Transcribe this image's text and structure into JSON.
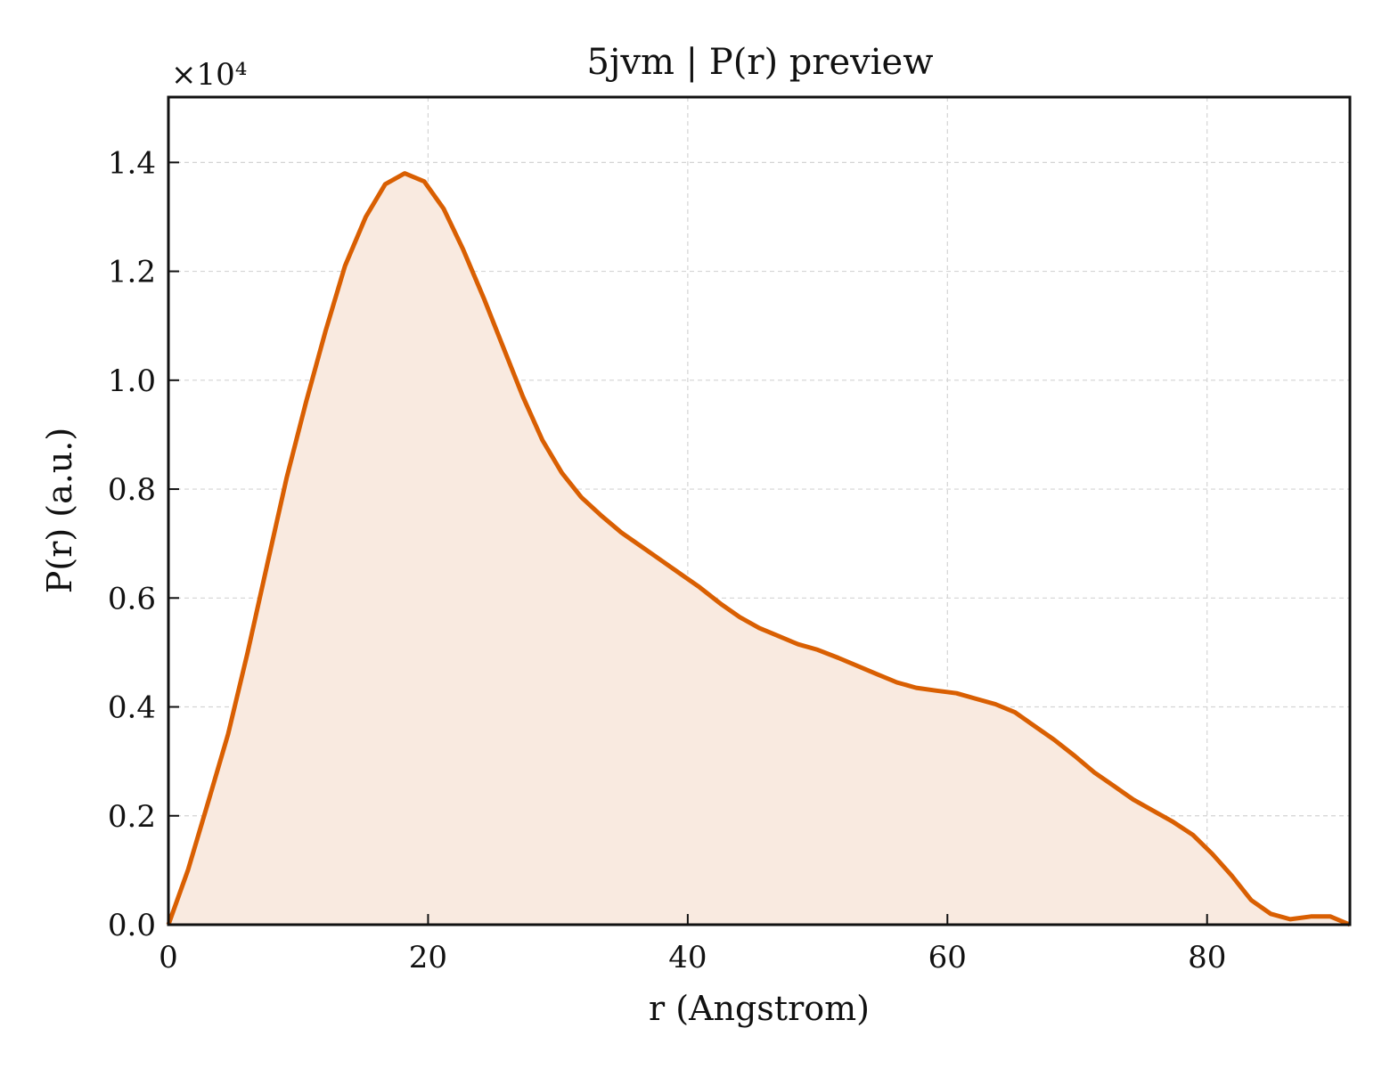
{
  "chart_data": {
    "type": "area",
    "title": "5jvm | P(r) preview",
    "xlabel": "r (Angstrom)",
    "ylabel": "P(r) (a.u.)",
    "y_offset_label": "×10⁴",
    "xlim": [
      0,
      91
    ],
    "ylim": [
      0,
      1.52
    ],
    "xticks": [
      0,
      20,
      40,
      60,
      80
    ],
    "xtick_labels": [
      "0",
      "20",
      "40",
      "60",
      "80"
    ],
    "yticks": [
      0.0,
      0.2,
      0.4,
      0.6,
      0.8,
      1.0,
      1.2,
      1.4
    ],
    "ytick_labels": [
      "0.0",
      "0.2",
      "0.4",
      "0.6",
      "0.8",
      "1.0",
      "1.2",
      "1.4"
    ],
    "grid": true,
    "colors": {
      "line": "#d95f02",
      "fill": "#f9eae0"
    },
    "series": [
      {
        "x": [
          0,
          1.5,
          3.0,
          4.6,
          6.1,
          7.6,
          9.1,
          10.6,
          12.1,
          13.6,
          15.2,
          16.7,
          18.2,
          19.7,
          21.2,
          22.7,
          24.3,
          25.8,
          27.3,
          28.8,
          30.3,
          31.8,
          33.4,
          34.9,
          36.4,
          37.9,
          39.4,
          40.9,
          42.5,
          44.0,
          45.5,
          47.0,
          48.5,
          50.0,
          51.6,
          53.1,
          54.6,
          56.1,
          57.6,
          59.1,
          60.7,
          62.2,
          63.7,
          65.2,
          66.7,
          68.2,
          69.8,
          71.3,
          72.8,
          74.3,
          75.8,
          77.3,
          78.9,
          80.4,
          81.9,
          83.4,
          84.9,
          86.4,
          88.0,
          89.5,
          91.0
        ],
        "y": [
          0.0,
          0.1,
          0.22,
          0.35,
          0.5,
          0.66,
          0.82,
          0.96,
          1.09,
          1.21,
          1.3,
          1.36,
          1.38,
          1.365,
          1.315,
          1.24,
          1.15,
          1.06,
          0.97,
          0.89,
          0.83,
          0.785,
          0.75,
          0.72,
          0.695,
          0.67,
          0.645,
          0.62,
          0.59,
          0.565,
          0.545,
          0.53,
          0.515,
          0.505,
          0.49,
          0.475,
          0.46,
          0.445,
          0.435,
          0.43,
          0.425,
          0.415,
          0.405,
          0.39,
          0.365,
          0.34,
          0.31,
          0.28,
          0.255,
          0.23,
          0.21,
          0.19,
          0.165,
          0.13,
          0.09,
          0.045,
          0.02,
          0.01,
          0.015,
          0.015,
          0.0
        ]
      }
    ]
  }
}
